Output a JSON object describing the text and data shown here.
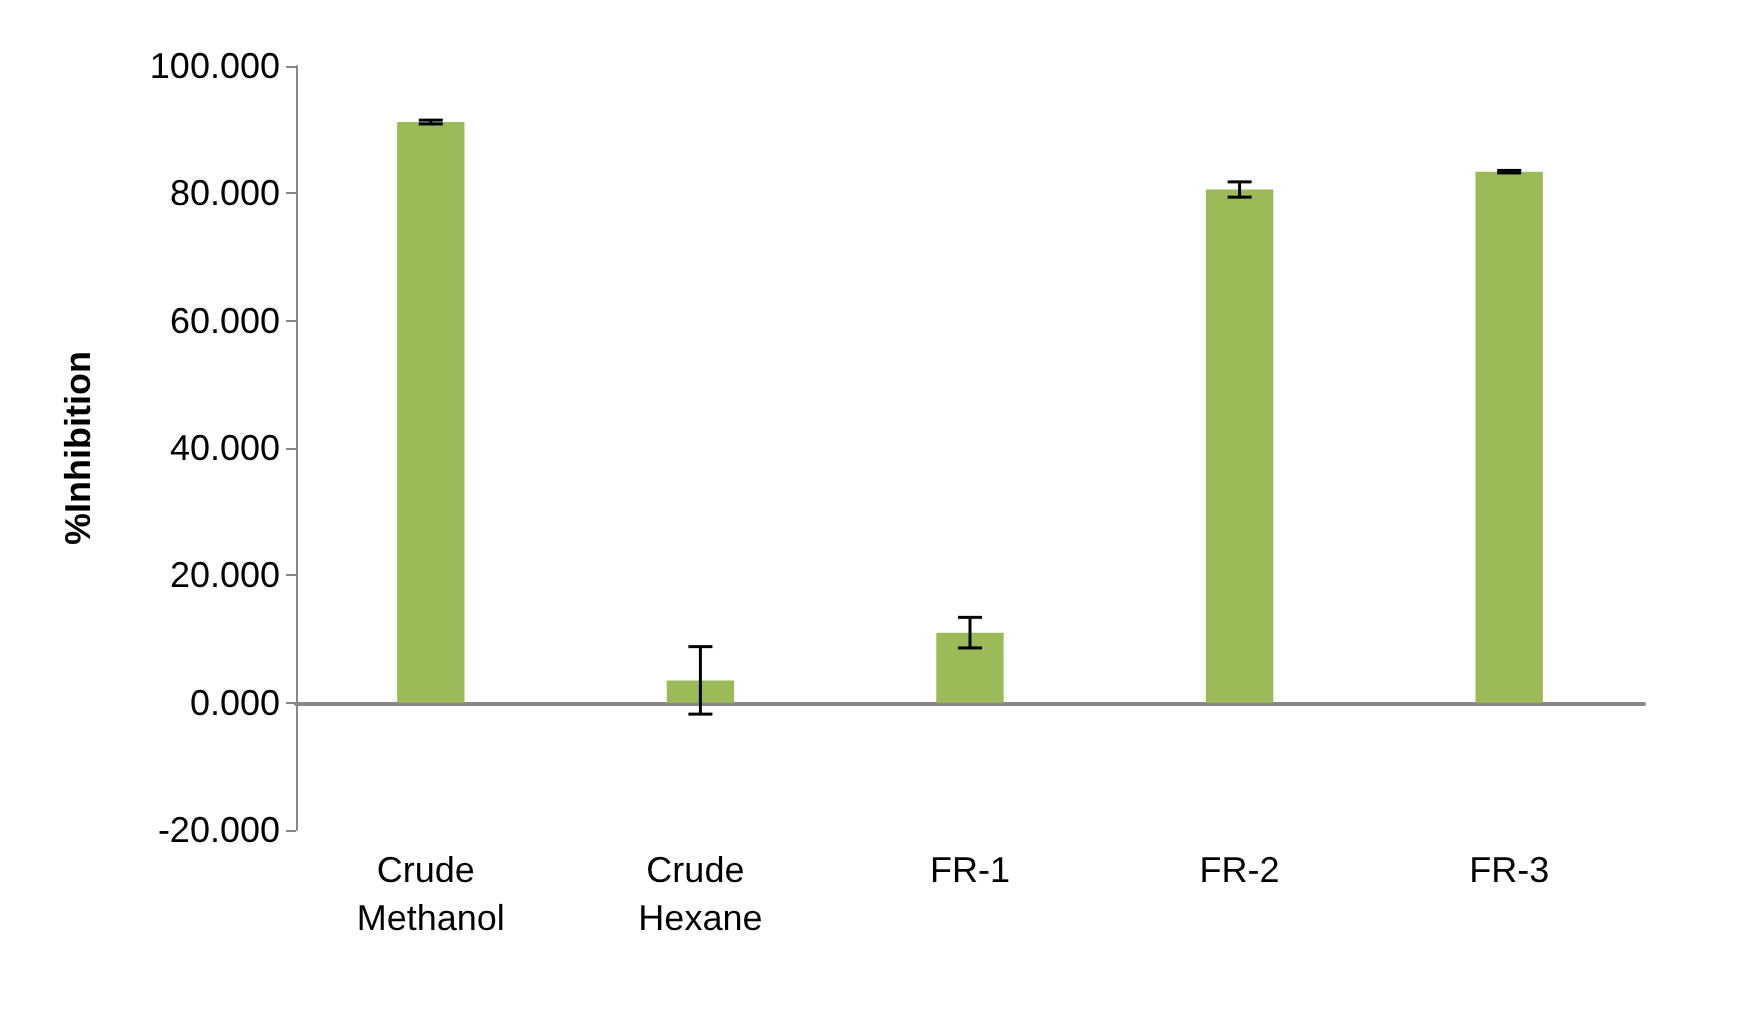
{
  "chart_data": {
    "type": "bar",
    "ylabel": "%Inhibition",
    "categories": [
      "Crude Methanol",
      "Crude Hexane",
      "FR-1",
      "FR-2",
      "FR-3"
    ],
    "values": [
      91.2,
      3.5,
      11.0,
      80.6,
      83.4
    ],
    "errors": [
      0.3,
      5.3,
      2.4,
      1.2,
      0.2
    ],
    "color": "#9bbb59",
    "ylim": [
      -20,
      100
    ],
    "yticks": [
      {
        "value": -20,
        "label": "-20.000"
      },
      {
        "value": 0,
        "label": "0.000"
      },
      {
        "value": 20,
        "label": "20.000"
      },
      {
        "value": 40,
        "label": "40.000"
      },
      {
        "value": 60,
        "label": "60.000"
      },
      {
        "value": 80,
        "label": "80.000"
      },
      {
        "value": 100,
        "label": "100.000"
      }
    ]
  }
}
